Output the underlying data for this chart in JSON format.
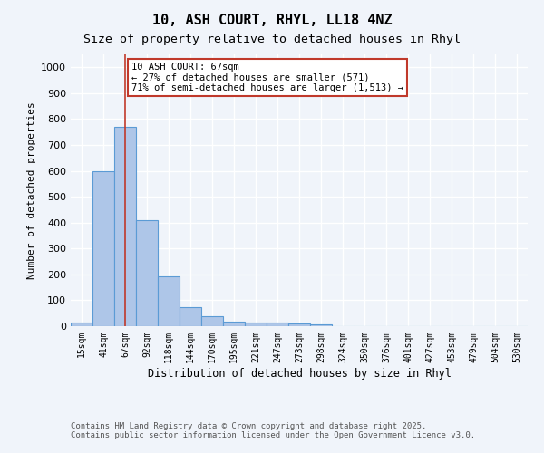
{
  "title1": "10, ASH COURT, RHYL, LL18 4NZ",
  "title2": "Size of property relative to detached houses in Rhyl",
  "xlabel": "Distribution of detached houses by size in Rhyl",
  "ylabel": "Number of detached properties",
  "bin_labels": [
    "15sqm",
    "41sqm",
    "67sqm",
    "92sqm",
    "118sqm",
    "144sqm",
    "170sqm",
    "195sqm",
    "221sqm",
    "247sqm",
    "273sqm",
    "298sqm",
    "324sqm",
    "350sqm",
    "376sqm",
    "401sqm",
    "427sqm",
    "453sqm",
    "479sqm",
    "504sqm",
    "530sqm"
  ],
  "bar_values": [
    15,
    600,
    770,
    410,
    192,
    75,
    37,
    18,
    15,
    13,
    10,
    6,
    0,
    0,
    0,
    0,
    0,
    0,
    0,
    0,
    0
  ],
  "bar_color": "#aec6e8",
  "bar_edge_color": "#5b9bd5",
  "vertical_line_x": 2,
  "vertical_line_color": "#c0392b",
  "annotation_text": "10 ASH COURT: 67sqm\n← 27% of detached houses are smaller (571)\n71% of semi-detached houses are larger (1,513) →",
  "annotation_box_color": "#ffffff",
  "annotation_box_edge": "#c0392b",
  "ylim": [
    0,
    1050
  ],
  "yticks": [
    0,
    100,
    200,
    300,
    400,
    500,
    600,
    700,
    800,
    900,
    1000
  ],
  "footer_text": "Contains HM Land Registry data © Crown copyright and database right 2025.\nContains public sector information licensed under the Open Government Licence v3.0.",
  "bg_color": "#f0f4fa",
  "grid_color": "#ffffff"
}
